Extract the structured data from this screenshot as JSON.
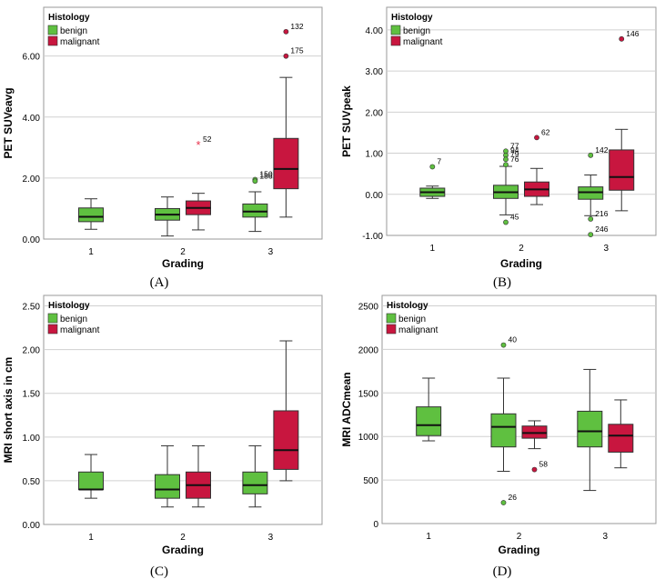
{
  "colors": {
    "benign": "#5fc040",
    "malignant": "#c8163f",
    "benign_stroke": "#2f7a22",
    "malignant_stroke": "#7a0d26",
    "grid": "#d0d0d0",
    "extreme": "#e8344e"
  },
  "chart_data": [
    {
      "type": "boxplot",
      "caption": "(A)",
      "xlabel": "Grading",
      "ylabel": "PET SUVeavg",
      "ylim": [
        0,
        7.6
      ],
      "yticks": [
        0,
        2,
        4,
        6
      ],
      "ytick_labels": [
        "0.00",
        "2.00",
        "4.00",
        "6.00"
      ],
      "grid": true,
      "legend": {
        "title": "Histology",
        "entries": [
          "benign",
          "malignant"
        ],
        "placement": "top-left"
      },
      "categories": [
        "1",
        "2",
        "3"
      ],
      "series": [
        {
          "name": "benign",
          "boxes": [
            {
              "category": "1",
              "min": 0.32,
              "q1": 0.57,
              "median": 0.73,
              "q3": 1.02,
              "max": 1.32
            },
            {
              "category": "2",
              "min": 0.1,
              "q1": 0.62,
              "median": 0.8,
              "q3": 1.0,
              "max": 1.38
            },
            {
              "category": "3",
              "min": 0.25,
              "q1": 0.72,
              "median": 0.9,
              "q3": 1.15,
              "max": 1.55
            }
          ]
        },
        {
          "name": "malignant",
          "boxes": [
            {
              "category": "2",
              "min": 0.3,
              "q1": 0.8,
              "median": 1.02,
              "q3": 1.25,
              "max": 1.5
            },
            {
              "category": "3",
              "min": 0.72,
              "q1": 1.65,
              "median": 2.3,
              "q3": 3.3,
              "max": 5.3
            }
          ]
        }
      ],
      "outliers": [
        {
          "series": "malignant",
          "category": "2",
          "y": 3.1,
          "label": "52",
          "kind": "extreme"
        },
        {
          "series": "benign",
          "category": "3",
          "y": 1.95,
          "label": "150",
          "kind": "outlier"
        },
        {
          "series": "benign",
          "category": "3",
          "y": 1.9,
          "label": "186",
          "kind": "outlier"
        },
        {
          "series": "malignant",
          "category": "3",
          "y": 6.8,
          "label": "132",
          "kind": "outlier"
        },
        {
          "series": "malignant",
          "category": "3",
          "y": 6.0,
          "label": "175",
          "kind": "outlier"
        }
      ]
    },
    {
      "type": "boxplot",
      "caption": "(B)",
      "xlabel": "Grading",
      "ylabel": "PET SUVpeak",
      "ylim": [
        -1,
        4.55
      ],
      "yticks": [
        -1,
        0,
        1,
        2,
        3,
        4
      ],
      "ytick_labels": [
        "-1.00",
        "0.00",
        "1.00",
        "2.00",
        "3.00",
        "4.00"
      ],
      "grid": true,
      "legend": {
        "title": "Histology",
        "entries": [
          "benign",
          "malignant"
        ],
        "placement": "top-left"
      },
      "categories": [
        "1",
        "2",
        "3"
      ],
      "series": [
        {
          "name": "benign",
          "boxes": [
            {
              "category": "1",
              "min": -0.1,
              "q1": -0.05,
              "median": 0.05,
              "q3": 0.15,
              "max": 0.2
            },
            {
              "category": "2",
              "min": -0.5,
              "q1": -0.1,
              "median": 0.05,
              "q3": 0.22,
              "max": 0.68
            },
            {
              "category": "3",
              "min": -0.52,
              "q1": -0.12,
              "median": 0.05,
              "q3": 0.18,
              "max": 0.47
            }
          ]
        },
        {
          "name": "malignant",
          "boxes": [
            {
              "category": "2",
              "min": -0.25,
              "q1": -0.05,
              "median": 0.12,
              "q3": 0.3,
              "max": 0.63
            },
            {
              "category": "3",
              "min": -0.4,
              "q1": 0.1,
              "median": 0.42,
              "q3": 1.08,
              "max": 1.58
            }
          ]
        }
      ],
      "outliers": [
        {
          "series": "benign",
          "category": "1",
          "y": 0.67,
          "label": "7",
          "kind": "outlier"
        },
        {
          "series": "benign",
          "category": "2",
          "y": 1.05,
          "label": "77",
          "kind": "outlier"
        },
        {
          "series": "benign",
          "category": "2",
          "y": 0.95,
          "label": "94",
          "kind": "outlier"
        },
        {
          "series": "benign",
          "category": "2",
          "y": 0.85,
          "label": "79",
          "kind": "outlier"
        },
        {
          "series": "benign",
          "category": "2",
          "y": 0.72,
          "label": "76",
          "kind": "outlier"
        },
        {
          "series": "benign",
          "category": "2",
          "y": -0.68,
          "label": "45",
          "kind": "outlier"
        },
        {
          "series": "malignant",
          "category": "2",
          "y": 1.38,
          "label": "62",
          "kind": "outlier"
        },
        {
          "series": "benign",
          "category": "3",
          "y": 0.95,
          "label": "142",
          "kind": "outlier"
        },
        {
          "series": "benign",
          "category": "3",
          "y": -0.6,
          "label": "216",
          "kind": "outlier"
        },
        {
          "series": "benign",
          "category": "3",
          "y": -0.98,
          "label": "246",
          "kind": "outlier"
        },
        {
          "series": "malignant",
          "category": "3",
          "y": 3.78,
          "label": "146",
          "kind": "outlier"
        }
      ]
    },
    {
      "type": "boxplot",
      "caption": "(C)",
      "xlabel": "Grading",
      "ylabel": "MRI short axis in cm",
      "ylim": [
        0,
        2.62
      ],
      "yticks": [
        0,
        0.5,
        1,
        1.5,
        2,
        2.5
      ],
      "ytick_labels": [
        "0.00",
        "0.50",
        "1.00",
        "1.50",
        "2.00",
        "2.50"
      ],
      "grid": true,
      "legend": {
        "title": "Histology",
        "entries": [
          "benign",
          "malignant"
        ],
        "placement": "top-left"
      },
      "categories": [
        "1",
        "2",
        "3"
      ],
      "series": [
        {
          "name": "benign",
          "boxes": [
            {
              "category": "1",
              "min": 0.3,
              "q1": 0.4,
              "median": 0.4,
              "q3": 0.6,
              "max": 0.8
            },
            {
              "category": "2",
              "min": 0.2,
              "q1": 0.3,
              "median": 0.4,
              "q3": 0.57,
              "max": 0.9
            },
            {
              "category": "3",
              "min": 0.2,
              "q1": 0.35,
              "median": 0.45,
              "q3": 0.6,
              "max": 0.9
            }
          ]
        },
        {
          "name": "malignant",
          "boxes": [
            {
              "category": "2",
              "min": 0.2,
              "q1": 0.3,
              "median": 0.45,
              "q3": 0.6,
              "max": 0.9
            },
            {
              "category": "3",
              "min": 0.5,
              "q1": 0.63,
              "median": 0.85,
              "q3": 1.3,
              "max": 2.1
            }
          ]
        }
      ],
      "outliers": []
    },
    {
      "type": "boxplot",
      "caption": "(D)",
      "xlabel": "Grading",
      "ylabel": "MRI ADCmean",
      "ylim": [
        0,
        2620
      ],
      "yticks": [
        0,
        500,
        1000,
        1500,
        2000,
        2500
      ],
      "ytick_labels": [
        "0",
        "500",
        "1000",
        "1500",
        "2000",
        "2500"
      ],
      "grid": true,
      "legend": {
        "title": "Histology",
        "entries": [
          "benign",
          "malignant"
        ],
        "placement": "top-left"
      },
      "categories": [
        "1",
        "2",
        "3"
      ],
      "series": [
        {
          "name": "benign",
          "boxes": [
            {
              "category": "1",
              "min": 950,
              "q1": 1010,
              "median": 1130,
              "q3": 1340,
              "max": 1670
            },
            {
              "category": "2",
              "min": 600,
              "q1": 880,
              "median": 1110,
              "q3": 1260,
              "max": 1670
            },
            {
              "category": "3",
              "min": 380,
              "q1": 880,
              "median": 1060,
              "q3": 1290,
              "max": 1770
            }
          ]
        },
        {
          "name": "malignant",
          "boxes": [
            {
              "category": "2",
              "min": 860,
              "q1": 980,
              "median": 1040,
              "q3": 1120,
              "max": 1180
            },
            {
              "category": "3",
              "min": 640,
              "q1": 820,
              "median": 1010,
              "q3": 1140,
              "max": 1420
            }
          ]
        }
      ],
      "outliers": [
        {
          "series": "benign",
          "category": "2",
          "y": 2050,
          "label": "40",
          "kind": "outlier"
        },
        {
          "series": "benign",
          "category": "2",
          "y": 240,
          "label": "26",
          "kind": "outlier"
        },
        {
          "series": "malignant",
          "category": "2",
          "y": 620,
          "label": "58",
          "kind": "outlier"
        }
      ]
    }
  ]
}
